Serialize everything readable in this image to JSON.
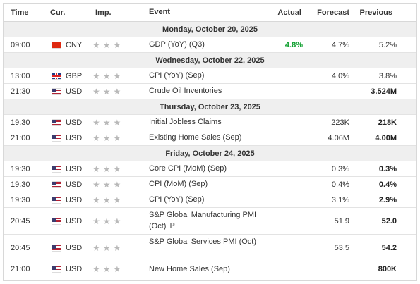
{
  "headers": {
    "time": "Time",
    "currency": "Cur.",
    "importance": "Imp.",
    "event": "Event",
    "actual": "Actual",
    "forecast": "Forecast",
    "previous": "Previous"
  },
  "dates": [
    "Monday, October 20, 2025",
    "Wednesday, October 22, 2025",
    "Thursday, October 23, 2025",
    "Friday, October 24, 2025"
  ],
  "events": [
    {
      "time": "09:00",
      "flag": "cn",
      "currency": "CNY",
      "event": "GDP (YoY) (Q3)",
      "actual": "4.8%",
      "forecast": "4.7%",
      "previous": "5.2%"
    },
    {
      "time": "13:00",
      "flag": "gb",
      "currency": "GBP",
      "event": "CPI (YoY) (Sep)",
      "actual": "",
      "forecast": "4.0%",
      "previous": "3.8%"
    },
    {
      "time": "21:30",
      "flag": "us",
      "currency": "USD",
      "event": "Crude Oil Inventories",
      "actual": "",
      "forecast": "",
      "previous": "3.524M"
    },
    {
      "time": "19:30",
      "flag": "us",
      "currency": "USD",
      "event": "Initial Jobless Claims",
      "actual": "",
      "forecast": "223K",
      "previous": "218K"
    },
    {
      "time": "21:00",
      "flag": "us",
      "currency": "USD",
      "event": "Existing Home Sales (Sep)",
      "actual": "",
      "forecast": "4.06M",
      "previous": "4.00M"
    },
    {
      "time": "19:30",
      "flag": "us",
      "currency": "USD",
      "event": "Core CPI (MoM) (Sep)",
      "actual": "",
      "forecast": "0.3%",
      "previous": "0.3%"
    },
    {
      "time": "19:30",
      "flag": "us",
      "currency": "USD",
      "event": "CPI (MoM) (Sep)",
      "actual": "",
      "forecast": "0.4%",
      "previous": "0.4%"
    },
    {
      "time": "19:30",
      "flag": "us",
      "currency": "USD",
      "event": "CPI (YoY) (Sep)",
      "actual": "",
      "forecast": "3.1%",
      "previous": "2.9%"
    },
    {
      "time": "20:45",
      "flag": "us",
      "currency": "USD",
      "event": "S&P Global Manufacturing PMI (Oct)",
      "actual": "",
      "forecast": "51.9",
      "previous": "52.0"
    },
    {
      "time": "20:45",
      "flag": "us",
      "currency": "USD",
      "event": "S&P Global Services PMI (Oct)",
      "actual": "",
      "forecast": "53.5",
      "previous": "54.2"
    },
    {
      "time": "21:00",
      "flag": "us",
      "currency": "USD",
      "event": "New Home Sales (Sep)",
      "actual": "",
      "forecast": "",
      "previous": "800K"
    }
  ],
  "importance_icon": "star-icon",
  "preliminary_icon": "preliminary-icon",
  "preliminary_symbol": "P",
  "star_symbol": "★",
  "colors": {
    "actual_beat": "#0e9f2e",
    "date_row_bg": "#efefef",
    "star": "#b9b9b9"
  }
}
